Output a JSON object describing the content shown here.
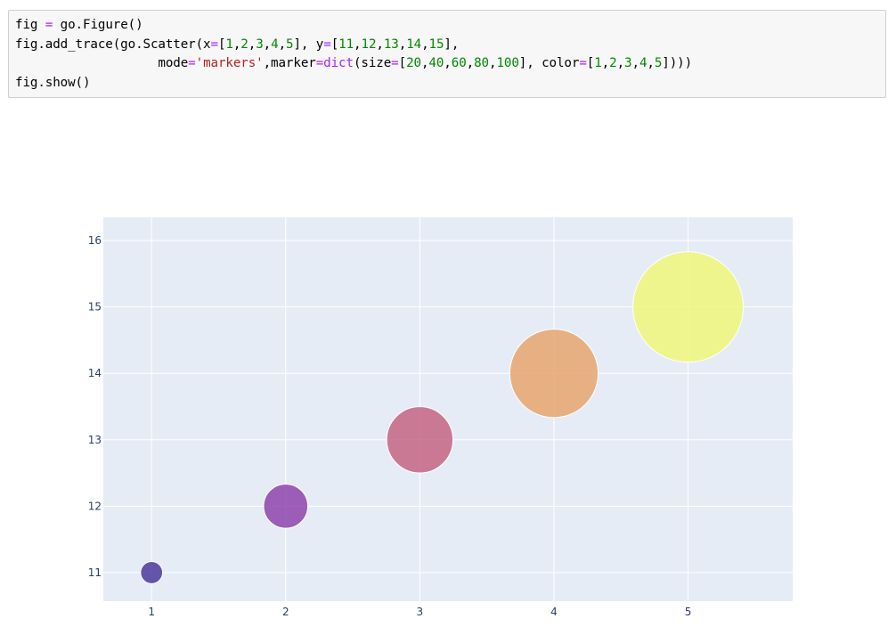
{
  "code": {
    "lines": [
      [
        {
          "t": "fig "
        },
        {
          "t": "=",
          "c": "op"
        },
        {
          "t": " go.Figure()"
        }
      ],
      [
        {
          "t": "fig.add_trace(go.Scatter(x"
        },
        {
          "t": "=",
          "c": "op"
        },
        {
          "t": "["
        },
        {
          "t": "1",
          "c": "num"
        },
        {
          "t": ","
        },
        {
          "t": "2",
          "c": "num"
        },
        {
          "t": ","
        },
        {
          "t": "3",
          "c": "num"
        },
        {
          "t": ","
        },
        {
          "t": "4",
          "c": "num"
        },
        {
          "t": ","
        },
        {
          "t": "5",
          "c": "num"
        },
        {
          "t": "], y"
        },
        {
          "t": "=",
          "c": "op"
        },
        {
          "t": "["
        },
        {
          "t": "11",
          "c": "num"
        },
        {
          "t": ","
        },
        {
          "t": "12",
          "c": "num"
        },
        {
          "t": ","
        },
        {
          "t": "13",
          "c": "num"
        },
        {
          "t": ","
        },
        {
          "t": "14",
          "c": "num"
        },
        {
          "t": ","
        },
        {
          "t": "15",
          "c": "num"
        },
        {
          "t": "],"
        }
      ],
      [
        {
          "t": "                   mode"
        },
        {
          "t": "=",
          "c": "op"
        },
        {
          "t": "'markers'",
          "c": "str"
        },
        {
          "t": ",marker"
        },
        {
          "t": "=",
          "c": "op"
        },
        {
          "t": "dict",
          "c": "kw"
        },
        {
          "t": "(size"
        },
        {
          "t": "=",
          "c": "op"
        },
        {
          "t": "["
        },
        {
          "t": "20",
          "c": "num"
        },
        {
          "t": ","
        },
        {
          "t": "40",
          "c": "num"
        },
        {
          "t": ","
        },
        {
          "t": "60",
          "c": "num"
        },
        {
          "t": ","
        },
        {
          "t": "80",
          "c": "num"
        },
        {
          "t": ","
        },
        {
          "t": "100",
          "c": "num"
        },
        {
          "t": "], color"
        },
        {
          "t": "=",
          "c": "op"
        },
        {
          "t": "["
        },
        {
          "t": "1",
          "c": "num"
        },
        {
          "t": ","
        },
        {
          "t": "2",
          "c": "num"
        },
        {
          "t": ","
        },
        {
          "t": "3",
          "c": "num"
        },
        {
          "t": ","
        },
        {
          "t": "4",
          "c": "num"
        },
        {
          "t": ","
        },
        {
          "t": "5",
          "c": "num"
        },
        {
          "t": "])))"
        }
      ],
      [
        {
          "t": "fig.show()"
        }
      ]
    ]
  },
  "chart_data": {
    "type": "scatter",
    "x": [
      1,
      2,
      3,
      4,
      5
    ],
    "y": [
      11,
      12,
      13,
      14,
      15
    ],
    "sizes": [
      20,
      40,
      60,
      80,
      100
    ],
    "colors": [
      "#4c3a9c",
      "#8e44ad",
      "#c46583",
      "#e8a66e",
      "#f0f77a"
    ],
    "xlim": [
      0.64,
      5.78
    ],
    "ylim": [
      10.57,
      16.35
    ],
    "x_ticks": [
      "1",
      "2",
      "3",
      "4",
      "5"
    ],
    "y_ticks": [
      "11",
      "12",
      "13",
      "14",
      "15",
      "16"
    ],
    "grid": true,
    "title": "",
    "xlabel": "",
    "ylabel": "",
    "plot_bg": "#e5ecf6"
  }
}
